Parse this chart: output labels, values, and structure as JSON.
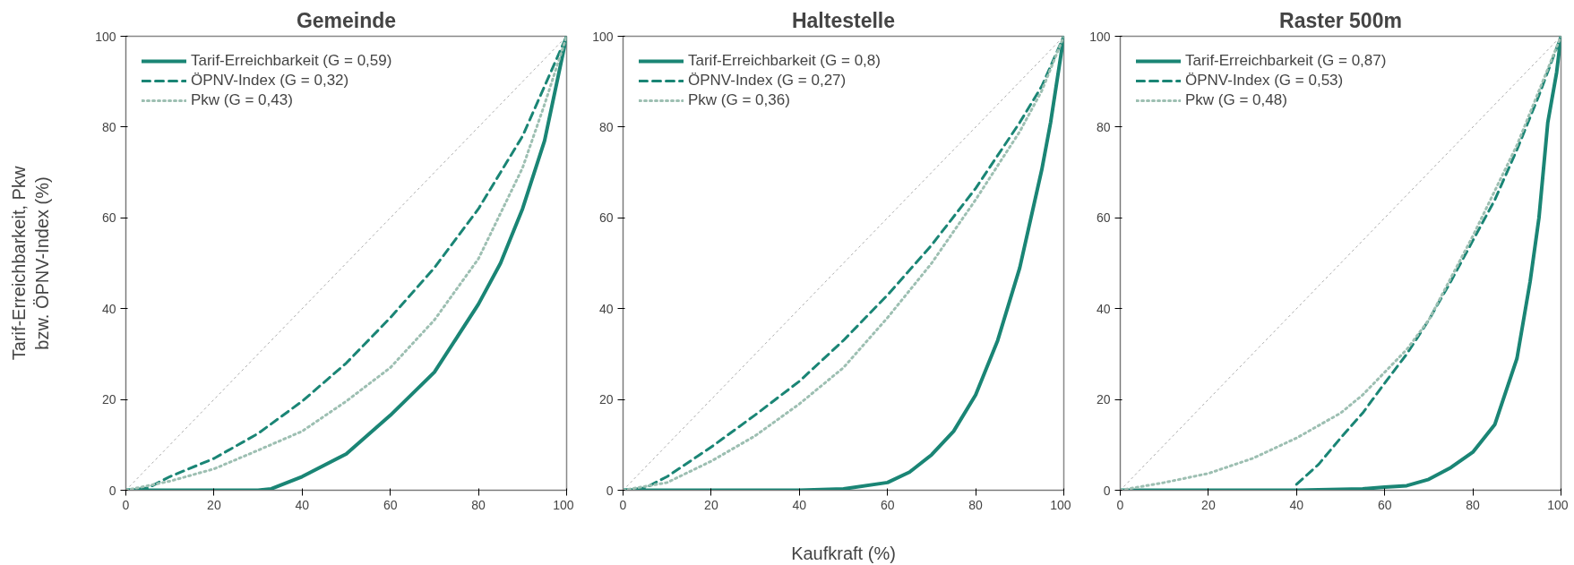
{
  "chart_data": [
    {
      "type": "line",
      "title": "Gemeinde",
      "ylabel": "Tarif-Erreichbarkeit, Pkw\nbzw. ÖPNV-Index (%)",
      "xlim": [
        0,
        100
      ],
      "ylim": [
        0,
        100
      ],
      "xticks": [
        0,
        20,
        40,
        60,
        80,
        100
      ],
      "yticks": [
        0,
        20,
        40,
        60,
        80,
        100
      ],
      "grid": false,
      "legend": "top left",
      "series": [
        {
          "name": null,
          "color": "#aaaaaa",
          "line_style": "dotted",
          "x": [
            0,
            100
          ],
          "values": [
            0,
            100
          ]
        },
        {
          "name": "Tarif-Erreichbarkeit (G = 0,59)",
          "color": "#1a8575",
          "line_style": "solid",
          "x": [
            0,
            10,
            20,
            30,
            33,
            40,
            50,
            60,
            70,
            80,
            85,
            90,
            95,
            100
          ],
          "values": [
            0,
            0,
            0,
            0,
            0.3,
            3,
            8,
            16.5,
            26,
            41,
            50,
            62,
            77,
            100
          ]
        },
        {
          "name": "ÖPNV-Index (G = 0,32)",
          "color": "#1a8575",
          "line_style": "dashed",
          "x": [
            0,
            5,
            10,
            20,
            30,
            40,
            50,
            60,
            70,
            80,
            90,
            95,
            100
          ],
          "values": [
            0,
            0.5,
            3,
            7,
            12.5,
            19.6,
            28,
            38,
            49,
            62,
            78,
            89,
            100
          ]
        },
        {
          "name": "Pkw (G = 0,43)",
          "color": "#9dbfb2",
          "line_style": "dotted",
          "x": [
            0,
            10,
            20,
            30,
            40,
            50,
            60,
            70,
            80,
            90,
            95,
            100
          ],
          "values": [
            0,
            2,
            4.7,
            8.8,
            13,
            19.6,
            27,
            37.5,
            51,
            71,
            85,
            100
          ]
        }
      ]
    },
    {
      "type": "line",
      "title": "Haltestelle",
      "xlabel": "Kaufkraft (%)",
      "xlim": [
        0,
        100
      ],
      "ylim": [
        0,
        100
      ],
      "xticks": [
        0,
        20,
        40,
        60,
        80,
        100
      ],
      "yticks": [
        0,
        20,
        40,
        60,
        80,
        100
      ],
      "grid": false,
      "legend": "top left",
      "series": [
        {
          "name": null,
          "color": "#aaaaaa",
          "line_style": "dotted",
          "x": [
            0,
            100
          ],
          "values": [
            0,
            100
          ]
        },
        {
          "name": "Tarif-Erreichbarkeit (G = 0,8)",
          "color": "#1a8575",
          "line_style": "solid",
          "x": [
            0,
            20,
            40,
            50,
            60,
            65,
            70,
            75,
            80,
            85,
            90,
            95,
            97,
            100
          ],
          "values": [
            0,
            0,
            0,
            0.3,
            1.7,
            4,
            7.8,
            13,
            21,
            33,
            49,
            70.6,
            81,
            100
          ]
        },
        {
          "name": "ÖPNV-Index (G = 0,27)",
          "color": "#1a8575",
          "line_style": "dashed",
          "x": [
            0,
            5,
            10,
            20,
            30,
            40,
            50,
            60,
            70,
            80,
            90,
            95,
            100
          ],
          "values": [
            0,
            0.5,
            3,
            9.5,
            16.6,
            24,
            33,
            43,
            54,
            66.5,
            81,
            89,
            100
          ]
        },
        {
          "name": "Pkw (G = 0,36)",
          "color": "#9dbfb2",
          "line_style": "dotted",
          "x": [
            0,
            10,
            20,
            30,
            40,
            50,
            60,
            70,
            80,
            90,
            95,
            100
          ],
          "values": [
            0,
            1.7,
            6.4,
            12,
            19,
            27,
            38,
            50,
            64,
            79,
            88,
            100
          ]
        }
      ]
    },
    {
      "type": "line",
      "title": "Raster 500m",
      "xlim": [
        0,
        100
      ],
      "ylim": [
        0,
        100
      ],
      "xticks": [
        0,
        20,
        40,
        60,
        80,
        100
      ],
      "yticks": [
        0,
        20,
        40,
        60,
        80,
        100
      ],
      "grid": false,
      "legend": "top left",
      "series": [
        {
          "name": null,
          "color": "#aaaaaa",
          "line_style": "dotted",
          "x": [
            0,
            100
          ],
          "values": [
            0,
            100
          ]
        },
        {
          "name": "Tarif-Erreichbarkeit (G = 0,87)",
          "color": "#1a8575",
          "line_style": "solid",
          "x": [
            0,
            20,
            40,
            55,
            60,
            65,
            70,
            75,
            80,
            85,
            90,
            93,
            95,
            97,
            99,
            100
          ],
          "values": [
            0,
            0,
            0,
            0.3,
            0.7,
            1,
            2.4,
            5,
            8.4,
            14.5,
            29,
            46,
            60,
            81,
            92,
            100
          ]
        },
        {
          "name": "ÖPNV-Index (G = 0,53)",
          "color": "#1a8575",
          "line_style": "dashed",
          "x": [
            40,
            45,
            50,
            55,
            60,
            65,
            70,
            75,
            80,
            85,
            90,
            95,
            100
          ],
          "values": [
            1.3,
            5.7,
            11.5,
            17,
            23.6,
            30,
            37.5,
            46,
            55,
            64,
            75,
            87,
            100
          ]
        },
        {
          "name": "Pkw (G = 0,48)",
          "color": "#9dbfb2",
          "line_style": "dotted",
          "x": [
            0,
            10,
            20,
            30,
            40,
            50,
            55,
            60,
            65,
            70,
            80,
            90,
            95,
            100
          ],
          "values": [
            0,
            1.7,
            3.7,
            7,
            11.5,
            17,
            21,
            26,
            31,
            37.5,
            56,
            76,
            88,
            100
          ]
        }
      ]
    }
  ]
}
